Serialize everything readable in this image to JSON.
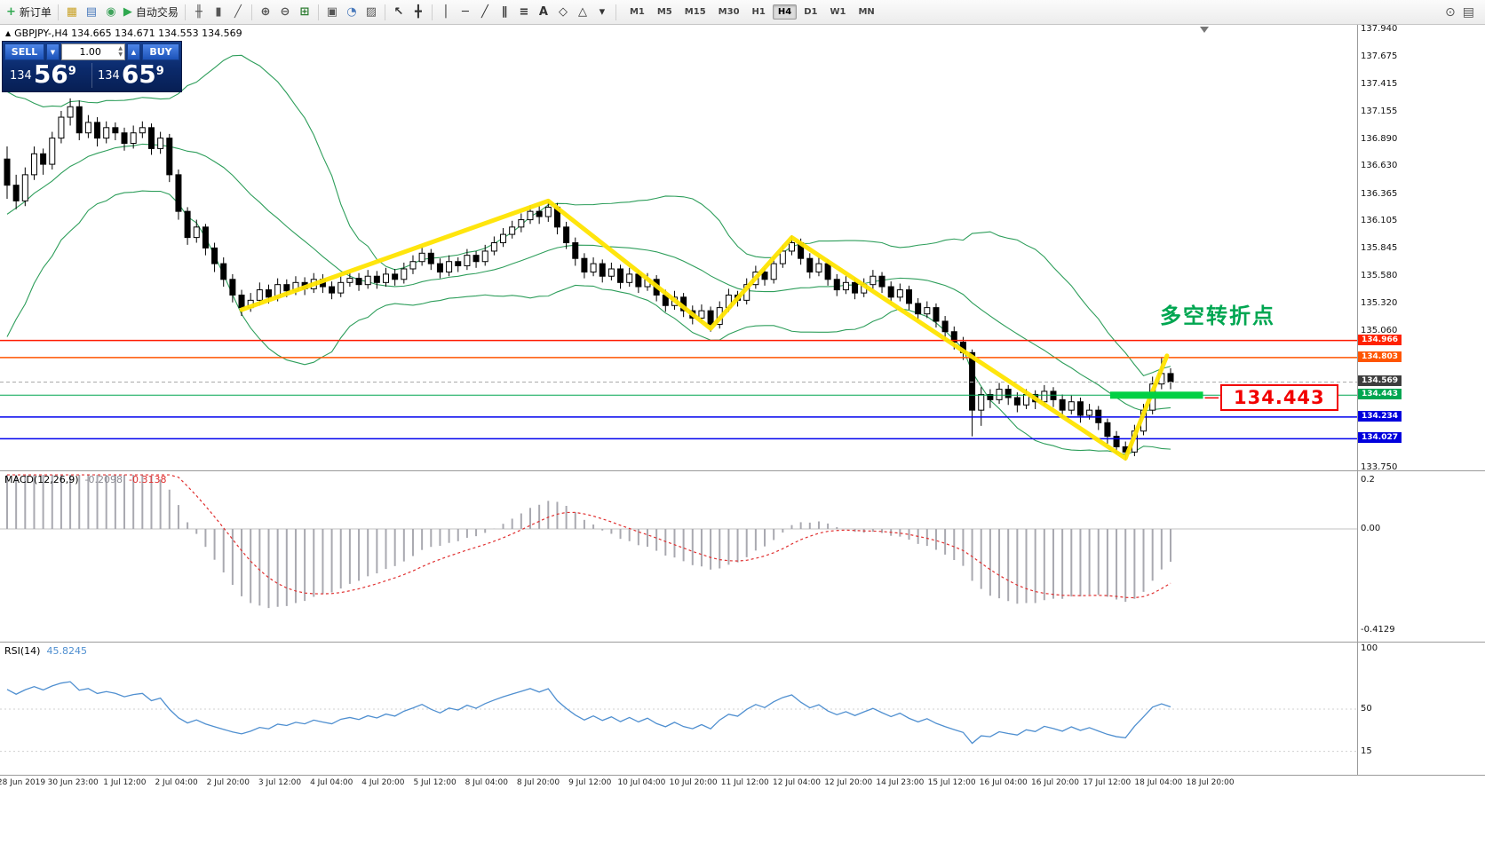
{
  "colors": {
    "band_green": "#2e9e5b",
    "macd_bar": "#a9a9b0",
    "macd_signal": "#e03030",
    "rsi_line": "#4f8fd0",
    "yellow": "#ffe400",
    "highlight_green": "#00d044",
    "annotation_green": "#00a651",
    "label_red": "#f20000",
    "panel_navy": "#0b2a6b",
    "button_blue": "#1c52b8"
  },
  "toolbar": {
    "groups": [
      {
        "items": [
          {
            "name": "new-order-button",
            "glyph": "+",
            "glyph_color": "#2fa84f",
            "label": "新订单"
          }
        ]
      },
      {
        "items": [
          {
            "name": "market-watch-icon",
            "glyph": "▦",
            "glyph_color": "#c9a227"
          },
          {
            "name": "data-window-icon",
            "glyph": "▤",
            "glyph_color": "#4a7abc"
          },
          {
            "name": "navigator-icon",
            "glyph": "◉",
            "glyph_color": "#3fa35c"
          },
          {
            "name": "auto-trading-button",
            "glyph": "▶",
            "glyph_color": "#2fa84f",
            "label": "自动交易"
          }
        ]
      },
      {
        "items": [
          {
            "name": "bar-chart-icon",
            "glyph": "╫",
            "glyph_color": "#555555"
          },
          {
            "name": "candlestick-icon",
            "glyph": "▮",
            "glyph_color": "#555555"
          },
          {
            "name": "line-chart-icon",
            "glyph": "╱",
            "glyph_color": "#555555"
          }
        ]
      },
      {
        "items": [
          {
            "name": "zoom-in-icon",
            "glyph": "⊕",
            "glyph_color": "#555555"
          },
          {
            "name": "zoom-out-icon",
            "glyph": "⊖",
            "glyph_color": "#555555"
          },
          {
            "name": "indicators-icon",
            "glyph": "⊞",
            "glyph_color": "#2e7d32"
          }
        ]
      },
      {
        "items": [
          {
            "name": "tile-windows-icon",
            "glyph": "▣",
            "glyph_color": "#555555"
          },
          {
            "name": "period-icon",
            "glyph": "◔",
            "glyph_color": "#4a7abc"
          },
          {
            "name": "templates-icon",
            "glyph": "▨",
            "glyph_color": "#555555"
          }
        ]
      },
      {
        "items": [
          {
            "name": "cursor-icon",
            "glyph": "↖",
            "glyph_color": "#333333"
          },
          {
            "name": "crosshair-icon",
            "glyph": "╋",
            "glyph_color": "#333333"
          }
        ]
      },
      {
        "items": [
          {
            "name": "vertical-line-icon",
            "glyph": "│",
            "glyph_color": "#333333"
          },
          {
            "name": "horizontal-line-icon",
            "glyph": "─",
            "glyph_color": "#333333"
          },
          {
            "name": "trendline-icon",
            "glyph": "╱",
            "glyph_color": "#333333"
          },
          {
            "name": "channel-icon",
            "glyph": "∥",
            "glyph_color": "#333333"
          },
          {
            "name": "fibonacci-icon",
            "glyph": "≡",
            "glyph_color": "#333333"
          },
          {
            "name": "text-icon",
            "glyph": "A",
            "glyph_color": "#333333"
          },
          {
            "name": "label-icon",
            "glyph": "◇",
            "glyph_color": "#333333"
          },
          {
            "name": "shapes-icon",
            "glyph": "△",
            "glyph_color": "#333333"
          },
          {
            "name": "shapes-dropdown-icon",
            "glyph": "▾",
            "glyph_color": "#333333"
          }
        ]
      }
    ],
    "timeframes": [
      "M1",
      "M5",
      "M15",
      "M30",
      "H1",
      "H4",
      "D1",
      "W1",
      "MN"
    ],
    "active_timeframe": "H4",
    "right_icons": [
      {
        "name": "search-icon",
        "glyph": "⊙"
      },
      {
        "name": "window-list-icon",
        "glyph": "▤"
      }
    ]
  },
  "symbol_marker": "▲",
  "symbol_header": "GBPJPY-,H4  134.665 134.671 134.553 134.569",
  "trade_panel": {
    "sell_label": "SELL",
    "buy_label": "BUY",
    "volume": "1.00",
    "dropdown_glyph": "▼",
    "step_glyph": "▲",
    "spin_up": "▲",
    "spin_down": "▼",
    "sell_price": {
      "small": "134",
      "big": "56",
      "sup": "9"
    },
    "buy_price": {
      "small": "134",
      "big": "65",
      "sup": "9"
    }
  },
  "annotation": "多空转折点",
  "big_label": "134.443",
  "indicator_labels": {
    "macd": {
      "name": "MACD(12,26,9)",
      "v1": "-0.2098",
      "v2": "-0.3138"
    },
    "rsi": {
      "name": "RSI(14)",
      "v": "45.8245"
    }
  },
  "chart_data": {
    "type": "candlestick",
    "symbol": "GBPJPY-",
    "timeframe": "H4",
    "current_price": "134.569",
    "y_axis": {
      "min": 133.75,
      "max": 137.94
    },
    "y_ticks": [
      "137.940",
      "137.675",
      "137.415",
      "137.155",
      "136.890",
      "136.630",
      "136.365",
      "136.105",
      "135.845",
      "135.580",
      "135.320",
      "135.060",
      "133.750"
    ],
    "x_labels": [
      "28 Jun 2019",
      "30 Jun 23:00",
      "1 Jul 12:00",
      "2 Jul 04:00",
      "2 Jul 20:00",
      "3 Jul 12:00",
      "4 Jul 04:00",
      "4 Jul 20:00",
      "5 Jul 12:00",
      "8 Jul 04:00",
      "8 Jul 20:00",
      "9 Jul 12:00",
      "10 Jul 04:00",
      "10 Jul 20:00",
      "11 Jul 12:00",
      "12 Jul 04:00",
      "12 Jul 20:00",
      "14 Jul 23:00",
      "15 Jul 12:00",
      "16 Jul 04:00",
      "16 Jul 20:00",
      "17 Jul 12:00",
      "18 Jul 04:00",
      "18 Jul 20:00"
    ],
    "pre_closes": [
      135.1,
      135.3,
      135.2,
      135.5,
      135.7,
      135.6,
      135.9,
      136.1,
      136.0,
      136.3,
      136.5,
      136.4,
      136.6,
      136.8,
      136.7,
      136.9,
      137.0,
      136.8,
      136.6
    ],
    "ohlc": [
      [
        136.7,
        136.82,
        136.32,
        136.45
      ],
      [
        136.45,
        136.55,
        136.22,
        136.3
      ],
      [
        136.3,
        136.62,
        136.25,
        136.55
      ],
      [
        136.55,
        136.82,
        136.5,
        136.75
      ],
      [
        136.75,
        136.8,
        136.55,
        136.65
      ],
      [
        136.65,
        136.96,
        136.6,
        136.9
      ],
      [
        136.9,
        137.16,
        136.85,
        137.1
      ],
      [
        137.1,
        137.28,
        137.02,
        137.2
      ],
      [
        137.2,
        137.26,
        136.88,
        136.95
      ],
      [
        136.95,
        137.12,
        136.9,
        137.05
      ],
      [
        137.05,
        137.1,
        136.82,
        136.9
      ],
      [
        136.9,
        137.06,
        136.85,
        137.0
      ],
      [
        137.0,
        137.05,
        136.88,
        136.95
      ],
      [
        136.95,
        137.0,
        136.78,
        136.85
      ],
      [
        136.85,
        137.02,
        136.8,
        136.95
      ],
      [
        136.95,
        137.06,
        136.9,
        137.0
      ],
      [
        137.0,
        137.04,
        136.74,
        136.8
      ],
      [
        136.8,
        136.96,
        136.75,
        136.9
      ],
      [
        136.9,
        136.94,
        136.48,
        136.55
      ],
      [
        136.55,
        136.6,
        136.12,
        136.2
      ],
      [
        136.2,
        136.24,
        135.88,
        135.95
      ],
      [
        135.95,
        136.12,
        135.9,
        136.05
      ],
      [
        136.05,
        136.08,
        135.78,
        135.85
      ],
      [
        135.85,
        135.9,
        135.62,
        135.7
      ],
      [
        135.7,
        135.76,
        135.48,
        135.55
      ],
      [
        135.55,
        135.6,
        135.33,
        135.4
      ],
      [
        135.4,
        135.45,
        135.2,
        135.28
      ],
      [
        135.28,
        135.42,
        135.24,
        135.35
      ],
      [
        135.35,
        135.52,
        135.3,
        135.45
      ],
      [
        135.45,
        135.5,
        135.32,
        135.38
      ],
      [
        135.38,
        135.56,
        135.34,
        135.5
      ],
      [
        135.5,
        135.55,
        135.38,
        135.44
      ],
      [
        135.44,
        135.58,
        135.4,
        135.52
      ],
      [
        135.52,
        135.57,
        135.4,
        135.46
      ],
      [
        135.46,
        135.61,
        135.42,
        135.55
      ],
      [
        135.55,
        135.6,
        135.42,
        135.48
      ],
      [
        135.48,
        135.53,
        135.36,
        135.42
      ],
      [
        135.42,
        135.58,
        135.38,
        135.52
      ],
      [
        135.52,
        135.62,
        135.48,
        135.56
      ],
      [
        135.56,
        135.61,
        135.44,
        135.5
      ],
      [
        135.5,
        135.64,
        135.46,
        135.58
      ],
      [
        135.58,
        135.63,
        135.46,
        135.52
      ],
      [
        135.52,
        135.66,
        135.48,
        135.6
      ],
      [
        135.6,
        135.65,
        135.49,
        135.55
      ],
      [
        135.55,
        135.71,
        135.51,
        135.65
      ],
      [
        135.65,
        135.78,
        135.6,
        135.72
      ],
      [
        135.72,
        135.86,
        135.68,
        135.8
      ],
      [
        135.8,
        135.84,
        135.64,
        135.7
      ],
      [
        135.7,
        135.75,
        135.56,
        135.62
      ],
      [
        135.62,
        135.78,
        135.58,
        135.72
      ],
      [
        135.72,
        135.76,
        135.62,
        135.68
      ],
      [
        135.68,
        135.84,
        135.64,
        135.78
      ],
      [
        135.78,
        135.82,
        135.66,
        135.72
      ],
      [
        135.72,
        135.88,
        135.68,
        135.82
      ],
      [
        135.82,
        135.96,
        135.78,
        135.9
      ],
      [
        135.9,
        136.04,
        135.86,
        135.98
      ],
      [
        135.98,
        136.11,
        135.94,
        136.05
      ],
      [
        136.05,
        136.18,
        136.0,
        136.12
      ],
      [
        136.12,
        136.26,
        136.08,
        136.2
      ],
      [
        136.2,
        136.25,
        136.08,
        136.15
      ],
      [
        136.15,
        136.3,
        136.1,
        136.24
      ],
      [
        136.24,
        136.28,
        135.98,
        136.05
      ],
      [
        136.05,
        136.1,
        135.84,
        135.9
      ],
      [
        135.9,
        135.95,
        135.68,
        135.75
      ],
      [
        135.75,
        135.8,
        135.56,
        135.62
      ],
      [
        135.62,
        135.76,
        135.58,
        135.7
      ],
      [
        135.7,
        135.74,
        135.52,
        135.58
      ],
      [
        135.58,
        135.71,
        135.54,
        135.65
      ],
      [
        135.65,
        135.69,
        135.46,
        135.52
      ],
      [
        135.52,
        135.66,
        135.48,
        135.6
      ],
      [
        135.6,
        135.64,
        135.42,
        135.48
      ],
      [
        135.48,
        135.61,
        135.44,
        135.55
      ],
      [
        135.55,
        135.59,
        135.34,
        135.4
      ],
      [
        135.4,
        135.45,
        135.24,
        135.3
      ],
      [
        135.3,
        135.44,
        135.26,
        135.38
      ],
      [
        135.38,
        135.42,
        135.19,
        135.25
      ],
      [
        135.25,
        135.3,
        135.12,
        135.18
      ],
      [
        135.18,
        135.31,
        135.14,
        135.25
      ],
      [
        135.25,
        135.29,
        135.05,
        135.12
      ],
      [
        135.12,
        135.34,
        135.08,
        135.28
      ],
      [
        135.28,
        135.46,
        135.24,
        135.4
      ],
      [
        135.4,
        135.44,
        135.29,
        135.35
      ],
      [
        135.35,
        135.56,
        135.31,
        135.5
      ],
      [
        135.5,
        135.68,
        135.46,
        135.62
      ],
      [
        135.62,
        135.66,
        135.49,
        135.55
      ],
      [
        135.55,
        135.76,
        135.51,
        135.7
      ],
      [
        135.7,
        135.88,
        135.66,
        135.82
      ],
      [
        135.82,
        135.97,
        135.78,
        135.9
      ],
      [
        135.9,
        135.94,
        135.69,
        135.75
      ],
      [
        135.75,
        135.8,
        135.56,
        135.62
      ],
      [
        135.62,
        135.76,
        135.58,
        135.7
      ],
      [
        135.7,
        135.74,
        135.49,
        135.55
      ],
      [
        135.55,
        135.6,
        135.39,
        135.45
      ],
      [
        135.45,
        135.58,
        135.41,
        135.52
      ],
      [
        135.52,
        135.56,
        135.36,
        135.42
      ],
      [
        135.42,
        135.56,
        135.38,
        135.5
      ],
      [
        135.5,
        135.64,
        135.46,
        135.58
      ],
      [
        135.58,
        135.62,
        135.42,
        135.48
      ],
      [
        135.48,
        135.53,
        135.32,
        135.38
      ],
      [
        135.38,
        135.51,
        135.34,
        135.45
      ],
      [
        135.45,
        135.49,
        135.26,
        135.32
      ],
      [
        135.32,
        135.37,
        135.16,
        135.22
      ],
      [
        135.22,
        135.34,
        135.18,
        135.28
      ],
      [
        135.28,
        135.32,
        135.09,
        135.15
      ],
      [
        135.15,
        135.2,
        134.98,
        135.05
      ],
      [
        135.05,
        135.1,
        134.88,
        134.95
      ],
      [
        134.95,
        135.0,
        134.78,
        134.85
      ],
      [
        134.85,
        134.88,
        134.05,
        134.3
      ],
      [
        134.3,
        134.52,
        134.15,
        134.45
      ],
      [
        134.45,
        134.5,
        134.32,
        134.4
      ],
      [
        134.4,
        134.56,
        134.36,
        134.5
      ],
      [
        134.5,
        134.54,
        134.35,
        134.42
      ],
      [
        134.42,
        134.47,
        134.28,
        134.35
      ],
      [
        134.35,
        134.5,
        134.31,
        134.45
      ],
      [
        134.45,
        134.49,
        134.31,
        134.38
      ],
      [
        134.38,
        134.54,
        134.34,
        134.48
      ],
      [
        134.48,
        134.52,
        134.33,
        134.4
      ],
      [
        134.4,
        134.45,
        134.23,
        134.3
      ],
      [
        134.3,
        134.44,
        134.26,
        134.38
      ],
      [
        134.38,
        134.42,
        134.18,
        134.25
      ],
      [
        134.25,
        134.36,
        134.21,
        134.3
      ],
      [
        134.3,
        134.34,
        134.11,
        134.18
      ],
      [
        134.18,
        134.22,
        133.98,
        134.05
      ],
      [
        134.05,
        134.1,
        133.88,
        133.95
      ],
      [
        133.95,
        134.0,
        133.82,
        133.9
      ],
      [
        133.9,
        134.16,
        133.86,
        134.1
      ],
      [
        134.1,
        134.36,
        134.06,
        134.3
      ],
      [
        134.3,
        134.62,
        134.26,
        134.55
      ],
      [
        134.55,
        134.8,
        134.5,
        134.65
      ],
      [
        134.65,
        134.7,
        134.5,
        134.57
      ]
    ],
    "hlines": [
      {
        "price": 134.966,
        "label": "134.966",
        "color": "#ff1a00",
        "label_bg": "#ff2200",
        "style": "solid",
        "width": 1.5
      },
      {
        "price": 134.803,
        "label": "134.803",
        "color": "#ff5500",
        "label_bg": "#ff5500",
        "style": "solid",
        "width": 1.5
      },
      {
        "price": 134.569,
        "label": "134.569",
        "color": "#aaaaaa",
        "label_bg": "#3d3d3d",
        "style": "dashed",
        "width": 1
      },
      {
        "price": 134.443,
        "label": "134.443",
        "color": "#00a651",
        "label_bg": "#00a651",
        "style": "solid",
        "width": 1
      },
      {
        "price": 134.234,
        "label": "134.234",
        "color": "#0000ee",
        "label_bg": "#0000dd",
        "style": "solid",
        "width": 1.5
      },
      {
        "price": 134.027,
        "label": "134.027",
        "color": "#0000ee",
        "label_bg": "#0000dd",
        "style": "solid",
        "width": 1.5
      }
    ],
    "trendline": [
      [
        26,
        135.26
      ],
      [
        60,
        136.3
      ],
      [
        78,
        135.08
      ],
      [
        87,
        135.95
      ],
      [
        124,
        133.84
      ],
      [
        128.6,
        134.82
      ]
    ],
    "highlight_bar": {
      "price": 134.443,
      "from": 122.3,
      "to": 132.6
    },
    "indicators": {
      "bollinger": {
        "period": 20,
        "deviation": 2
      },
      "macd": {
        "fast": 12,
        "slow": 26,
        "signal": 9
      },
      "rsi": {
        "period": 14
      }
    },
    "macd_axis": [
      "0.2",
      "0.00",
      "-0.4129"
    ],
    "rsi_axis": [
      "100",
      "50",
      "15"
    ]
  }
}
